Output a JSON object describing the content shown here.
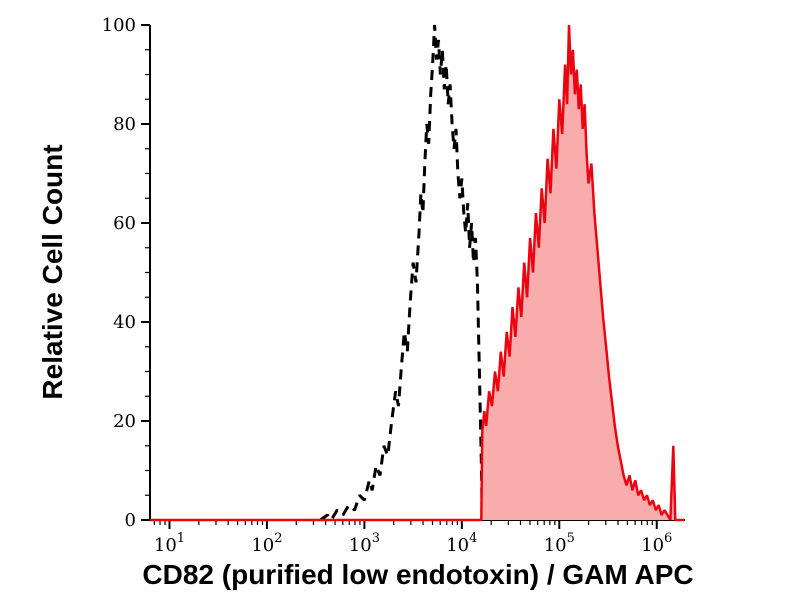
{
  "figure": {
    "background": "#ffffff"
  },
  "chart_data": {
    "type": "area",
    "subtype": "flow-cytometry-histogram-overlay",
    "title": "",
    "xlabel": "CD82 (purified low endotoxin) / GAM APC",
    "ylabel": "Relative Cell Count",
    "x_scale": "log",
    "x_tick_base": "10",
    "x_tick_exponents": [
      1,
      2,
      3,
      4,
      5,
      6
    ],
    "xlim_log10": [
      0.8,
      6.29
    ],
    "y_ticks": [
      0,
      20,
      40,
      60,
      80,
      100
    ],
    "y_minor_step": 5,
    "ylim": [
      0,
      100
    ],
    "grid": false,
    "legend": "none",
    "axis_color": "#000000",
    "series": [
      {
        "name": "black-dashed-control",
        "style": "dashed",
        "color": "#000000",
        "fill": "none",
        "width": 3,
        "points": [
          [
            2.55,
            0
          ],
          [
            2.62,
            1
          ],
          [
            2.66,
            0
          ],
          [
            2.72,
            2
          ],
          [
            2.78,
            1
          ],
          [
            2.84,
            3
          ],
          [
            2.9,
            2
          ],
          [
            2.95,
            5
          ],
          [
            3.0,
            4
          ],
          [
            3.05,
            8
          ],
          [
            3.08,
            6
          ],
          [
            3.12,
            11
          ],
          [
            3.16,
            9
          ],
          [
            3.2,
            15
          ],
          [
            3.24,
            13
          ],
          [
            3.28,
            20
          ],
          [
            3.32,
            26
          ],
          [
            3.35,
            23
          ],
          [
            3.38,
            31
          ],
          [
            3.41,
            38
          ],
          [
            3.44,
            34
          ],
          [
            3.47,
            44
          ],
          [
            3.5,
            52
          ],
          [
            3.53,
            48
          ],
          [
            3.56,
            58
          ],
          [
            3.58,
            66
          ],
          [
            3.6,
            62
          ],
          [
            3.62,
            72
          ],
          [
            3.64,
            80
          ],
          [
            3.66,
            76
          ],
          [
            3.68,
            86
          ],
          [
            3.7,
            92
          ],
          [
            3.72,
            100
          ],
          [
            3.74,
            93
          ],
          [
            3.76,
            97
          ],
          [
            3.78,
            90
          ],
          [
            3.8,
            95
          ],
          [
            3.82,
            87
          ],
          [
            3.84,
            92
          ],
          [
            3.86,
            84
          ],
          [
            3.88,
            88
          ],
          [
            3.9,
            80
          ],
          [
            3.92,
            75
          ],
          [
            3.94,
            79
          ],
          [
            3.96,
            70
          ],
          [
            3.98,
            65
          ],
          [
            4.0,
            69
          ],
          [
            4.02,
            62
          ],
          [
            4.04,
            58
          ],
          [
            4.06,
            64
          ],
          [
            4.08,
            55
          ],
          [
            4.1,
            60
          ],
          [
            4.12,
            52
          ],
          [
            4.14,
            57
          ],
          [
            4.16,
            48
          ],
          [
            4.18,
            30
          ],
          [
            4.2,
            12
          ],
          [
            4.21,
            0
          ]
        ]
      },
      {
        "name": "red-filled-stained",
        "style": "solid",
        "color": "#ea0510",
        "fill": "#f8acac",
        "width": 2.5,
        "points": [
          [
            0.8,
            0
          ],
          [
            4.2,
            0
          ],
          [
            4.21,
            18
          ],
          [
            4.23,
            22
          ],
          [
            4.25,
            19
          ],
          [
            4.28,
            26
          ],
          [
            4.31,
            23
          ],
          [
            4.34,
            30
          ],
          [
            4.37,
            26
          ],
          [
            4.4,
            34
          ],
          [
            4.43,
            29
          ],
          [
            4.46,
            38
          ],
          [
            4.49,
            33
          ],
          [
            4.52,
            43
          ],
          [
            4.55,
            37
          ],
          [
            4.58,
            47
          ],
          [
            4.61,
            41
          ],
          [
            4.64,
            52
          ],
          [
            4.67,
            45
          ],
          [
            4.7,
            57
          ],
          [
            4.73,
            50
          ],
          [
            4.76,
            62
          ],
          [
            4.79,
            55
          ],
          [
            4.82,
            67
          ],
          [
            4.85,
            60
          ],
          [
            4.88,
            73
          ],
          [
            4.91,
            66
          ],
          [
            4.94,
            79
          ],
          [
            4.97,
            71
          ],
          [
            5.0,
            85
          ],
          [
            5.03,
            78
          ],
          [
            5.06,
            92
          ],
          [
            5.08,
            84
          ],
          [
            5.1,
            100
          ],
          [
            5.12,
            90
          ],
          [
            5.14,
            95
          ],
          [
            5.16,
            86
          ],
          [
            5.18,
            91
          ],
          [
            5.2,
            83
          ],
          [
            5.22,
            88
          ],
          [
            5.24,
            79
          ],
          [
            5.26,
            84
          ],
          [
            5.28,
            74
          ],
          [
            5.3,
            68
          ],
          [
            5.33,
            72
          ],
          [
            5.36,
            62
          ],
          [
            5.39,
            55
          ],
          [
            5.42,
            48
          ],
          [
            5.45,
            41
          ],
          [
            5.48,
            35
          ],
          [
            5.51,
            29
          ],
          [
            5.54,
            24
          ],
          [
            5.57,
            19
          ],
          [
            5.6,
            15
          ],
          [
            5.63,
            12
          ],
          [
            5.66,
            9
          ],
          [
            5.69,
            7
          ],
          [
            5.72,
            9
          ],
          [
            5.75,
            6
          ],
          [
            5.78,
            8
          ],
          [
            5.81,
            5
          ],
          [
            5.84,
            6
          ],
          [
            5.87,
            4
          ],
          [
            5.9,
            5
          ],
          [
            5.93,
            3
          ],
          [
            5.96,
            4
          ],
          [
            5.99,
            2
          ],
          [
            6.02,
            3
          ],
          [
            6.05,
            1
          ],
          [
            6.08,
            2
          ],
          [
            6.11,
            1
          ],
          [
            6.14,
            0
          ],
          [
            6.17,
            15
          ],
          [
            6.19,
            0
          ],
          [
            6.28,
            0
          ]
        ]
      }
    ]
  }
}
